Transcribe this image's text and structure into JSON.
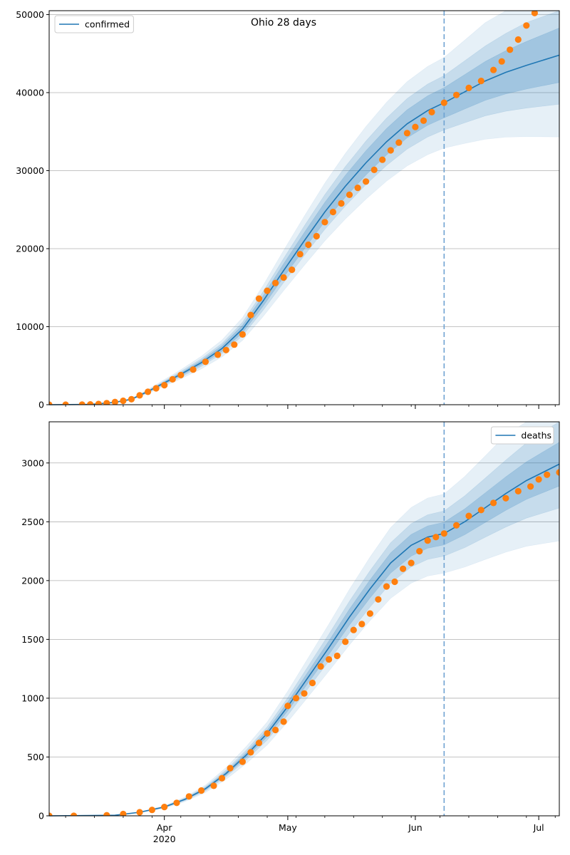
{
  "chart_data": [
    {
      "type": "line",
      "title": "Ohio 28 days",
      "xlabel": "",
      "ylabel": "",
      "x_ticks": [
        {
          "date": "2020-04-01",
          "label": "Apr",
          "sublabel": "2020"
        },
        {
          "date": "2020-05-01",
          "label": "May",
          "sublabel": ""
        },
        {
          "date": "2020-06-01",
          "label": "Jun",
          "sublabel": ""
        },
        {
          "date": "2020-07-01",
          "label": "Jul",
          "sublabel": ""
        }
      ],
      "xlim": [
        "2020-03-04",
        "2020-07-06"
      ],
      "ylim": [
        0,
        50500
      ],
      "y_ticks": [
        0,
        10000,
        20000,
        30000,
        40000,
        50000
      ],
      "grid": "horizontal",
      "legend_position": "top-left",
      "forecast_start": "2020-06-08",
      "series": [
        {
          "name": "confirmed",
          "kind": "fitted-line",
          "color": "#1f77b4",
          "points": [
            [
              "2020-03-04",
              0
            ],
            [
              "2020-03-14",
              40
            ],
            [
              "2020-03-20",
              300
            ],
            [
              "2020-03-24",
              700
            ],
            [
              "2020-03-28",
              1700
            ],
            [
              "2020-04-01",
              2800
            ],
            [
              "2020-04-05",
              3900
            ],
            [
              "2020-04-10",
              5400
            ],
            [
              "2020-04-15",
              7200
            ],
            [
              "2020-04-20",
              9700
            ],
            [
              "2020-04-25",
              13300
            ],
            [
              "2020-04-30",
              17200
            ],
            [
              "2020-05-05",
              21000
            ],
            [
              "2020-05-10",
              24700
            ],
            [
              "2020-05-15",
              28000
            ],
            [
              "2020-05-20",
              31000
            ],
            [
              "2020-05-25",
              33700
            ],
            [
              "2020-05-30",
              36000
            ],
            [
              "2020-06-04",
              37700
            ],
            [
              "2020-06-08",
              38700
            ],
            [
              "2020-06-13",
              40100
            ],
            [
              "2020-06-18",
              41500
            ],
            [
              "2020-06-23",
              42600
            ],
            [
              "2020-06-28",
              43500
            ],
            [
              "2020-07-06",
              44800
            ]
          ]
        },
        {
          "name": "",
          "kind": "observed-points",
          "color": "#ff7f0e",
          "points": [
            [
              "2020-03-04",
              0
            ],
            [
              "2020-03-08",
              0
            ],
            [
              "2020-03-12",
              10
            ],
            [
              "2020-03-14",
              40
            ],
            [
              "2020-03-16",
              90
            ],
            [
              "2020-03-18",
              200
            ],
            [
              "2020-03-20",
              350
            ],
            [
              "2020-03-22",
              500
            ],
            [
              "2020-03-24",
              700
            ],
            [
              "2020-03-26",
              1200
            ],
            [
              "2020-03-28",
              1650
            ],
            [
              "2020-03-30",
              2100
            ],
            [
              "2020-04-01",
              2500
            ],
            [
              "2020-04-03",
              3250
            ],
            [
              "2020-04-05",
              3800
            ],
            [
              "2020-04-08",
              4500
            ],
            [
              "2020-04-11",
              5500
            ],
            [
              "2020-04-14",
              6400
            ],
            [
              "2020-04-16",
              7000
            ],
            [
              "2020-04-18",
              7700
            ],
            [
              "2020-04-20",
              9000
            ],
            [
              "2020-04-22",
              11500
            ],
            [
              "2020-04-24",
              13600
            ],
            [
              "2020-04-26",
              14600
            ],
            [
              "2020-04-28",
              15600
            ],
            [
              "2020-04-30",
              16300
            ],
            [
              "2020-05-02",
              17300
            ],
            [
              "2020-05-04",
              19300
            ],
            [
              "2020-05-06",
              20500
            ],
            [
              "2020-05-08",
              21600
            ],
            [
              "2020-05-10",
              23400
            ],
            [
              "2020-05-12",
              24700
            ],
            [
              "2020-05-14",
              25800
            ],
            [
              "2020-05-16",
              26900
            ],
            [
              "2020-05-18",
              27800
            ],
            [
              "2020-05-20",
              28600
            ],
            [
              "2020-05-22",
              30100
            ],
            [
              "2020-05-24",
              31400
            ],
            [
              "2020-05-26",
              32600
            ],
            [
              "2020-05-28",
              33600
            ],
            [
              "2020-05-30",
              34800
            ],
            [
              "2020-06-01",
              35600
            ],
            [
              "2020-06-03",
              36400
            ],
            [
              "2020-06-05",
              37500
            ],
            [
              "2020-06-08",
              38700
            ],
            [
              "2020-06-11",
              39700
            ],
            [
              "2020-06-14",
              40600
            ],
            [
              "2020-06-17",
              41500
            ],
            [
              "2020-06-20",
              42900
            ],
            [
              "2020-06-22",
              44000
            ],
            [
              "2020-06-24",
              45500
            ],
            [
              "2020-06-26",
              46800
            ],
            [
              "2020-06-28",
              48600
            ],
            [
              "2020-06-30",
              50200
            ]
          ]
        }
      ],
      "bands": [
        {
          "name": "",
          "color": "#1f77b4",
          "opacity": 0.22,
          "half_width_fraction": 0.05
        },
        {
          "name": "",
          "color": "#1f77b4",
          "opacity": 0.16,
          "half_width_fraction": 0.09
        },
        {
          "name": "",
          "color": "#1f77b4",
          "opacity": 0.11,
          "half_width_fraction": 0.15
        }
      ]
    },
    {
      "type": "line",
      "title": "",
      "xlabel": "",
      "ylabel": "",
      "x_ticks": [
        {
          "date": "2020-04-01",
          "label": "Apr",
          "sublabel": "2020"
        },
        {
          "date": "2020-05-01",
          "label": "May",
          "sublabel": ""
        },
        {
          "date": "2020-06-01",
          "label": "Jun",
          "sublabel": ""
        },
        {
          "date": "2020-07-01",
          "label": "Jul",
          "sublabel": ""
        }
      ],
      "xlim": [
        "2020-03-04",
        "2020-07-06"
      ],
      "ylim": [
        0,
        3350
      ],
      "y_ticks": [
        0,
        500,
        1000,
        1500,
        2000,
        2500,
        3000
      ],
      "grid": "horizontal",
      "legend_position": "top-right",
      "forecast_start": "2020-06-08",
      "series": [
        {
          "name": "deaths",
          "kind": "fitted-line",
          "color": "#1f77b4",
          "points": [
            [
              "2020-03-04",
              0
            ],
            [
              "2020-03-20",
              5
            ],
            [
              "2020-03-26",
              30
            ],
            [
              "2020-04-01",
              75
            ],
            [
              "2020-04-06",
              140
            ],
            [
              "2020-04-11",
              230
            ],
            [
              "2020-04-16",
              360
            ],
            [
              "2020-04-21",
              520
            ],
            [
              "2020-04-26",
              700
            ],
            [
              "2020-05-01",
              930
            ],
            [
              "2020-05-06",
              1180
            ],
            [
              "2020-05-11",
              1430
            ],
            [
              "2020-05-16",
              1690
            ],
            [
              "2020-05-21",
              1930
            ],
            [
              "2020-05-26",
              2150
            ],
            [
              "2020-05-31",
              2300
            ],
            [
              "2020-06-04",
              2370
            ],
            [
              "2020-06-08",
              2400
            ],
            [
              "2020-06-13",
              2500
            ],
            [
              "2020-06-18",
              2620
            ],
            [
              "2020-06-23",
              2740
            ],
            [
              "2020-06-28",
              2850
            ],
            [
              "2020-07-02",
              2920
            ],
            [
              "2020-07-06",
              2990
            ]
          ]
        },
        {
          "name": "",
          "kind": "observed-points",
          "color": "#ff7f0e",
          "points": [
            [
              "2020-03-04",
              0
            ],
            [
              "2020-03-10",
              0
            ],
            [
              "2020-03-18",
              5
            ],
            [
              "2020-03-22",
              15
            ],
            [
              "2020-03-26",
              30
            ],
            [
              "2020-03-29",
              50
            ],
            [
              "2020-04-01",
              75
            ],
            [
              "2020-04-04",
              110
            ],
            [
              "2020-04-07",
              165
            ],
            [
              "2020-04-10",
              215
            ],
            [
              "2020-04-13",
              255
            ],
            [
              "2020-04-15",
              320
            ],
            [
              "2020-04-17",
              405
            ],
            [
              "2020-04-20",
              460
            ],
            [
              "2020-04-22",
              540
            ],
            [
              "2020-04-24",
              620
            ],
            [
              "2020-04-26",
              700
            ],
            [
              "2020-04-28",
              730
            ],
            [
              "2020-04-30",
              800
            ],
            [
              "2020-05-01",
              935
            ],
            [
              "2020-05-03",
              1000
            ],
            [
              "2020-05-05",
              1040
            ],
            [
              "2020-05-07",
              1130
            ],
            [
              "2020-05-09",
              1270
            ],
            [
              "2020-05-11",
              1330
            ],
            [
              "2020-05-13",
              1360
            ],
            [
              "2020-05-15",
              1480
            ],
            [
              "2020-05-17",
              1580
            ],
            [
              "2020-05-19",
              1630
            ],
            [
              "2020-05-21",
              1720
            ],
            [
              "2020-05-23",
              1840
            ],
            [
              "2020-05-25",
              1950
            ],
            [
              "2020-05-27",
              1990
            ],
            [
              "2020-05-29",
              2100
            ],
            [
              "2020-05-31",
              2150
            ],
            [
              "2020-06-02",
              2250
            ],
            [
              "2020-06-04",
              2340
            ],
            [
              "2020-06-06",
              2370
            ],
            [
              "2020-06-08",
              2400
            ],
            [
              "2020-06-11",
              2470
            ],
            [
              "2020-06-14",
              2550
            ],
            [
              "2020-06-17",
              2600
            ],
            [
              "2020-06-20",
              2660
            ],
            [
              "2020-06-23",
              2700
            ],
            [
              "2020-06-26",
              2760
            ],
            [
              "2020-06-29",
              2800
            ],
            [
              "2020-07-01",
              2860
            ],
            [
              "2020-07-03",
              2900
            ],
            [
              "2020-07-06",
              2920
            ]
          ]
        }
      ],
      "bands": [
        {
          "name": "",
          "color": "#1f77b4",
          "opacity": 0.22,
          "half_width_fraction": 0.04
        },
        {
          "name": "",
          "color": "#1f77b4",
          "opacity": 0.16,
          "half_width_fraction": 0.08
        },
        {
          "name": "",
          "color": "#1f77b4",
          "opacity": 0.11,
          "half_width_fraction": 0.14
        }
      ]
    }
  ]
}
